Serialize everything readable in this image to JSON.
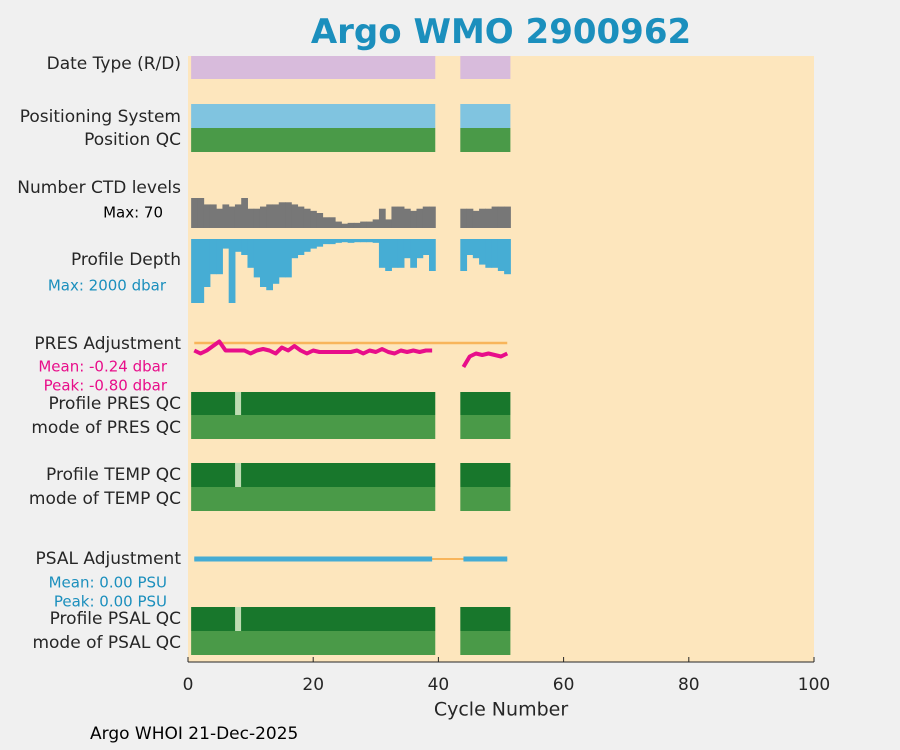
{
  "title": "Argo WMO 2900962",
  "footer": "Argo WHOI 21-Dec-2025",
  "colors": {
    "background": "#f0f0f0",
    "plot_bg": "#fde6bd",
    "title": "#1b8fbd",
    "datemode": "#d8bbdc",
    "positioning": "#80c4e0",
    "qc_light": "#4a9a48",
    "qc_dark": "#18772c",
    "ctd": "#777777",
    "depth": "#46add4",
    "pres_adj": "#e80e8a",
    "psal_adj": "#45acd4",
    "orange_ref": "#f8b55b",
    "gap": "#bfdcb3"
  },
  "chart_data": {
    "type": "timeline",
    "xlabel": "Cycle Number",
    "xlim": [
      0,
      100
    ],
    "xticks": [
      0,
      20,
      40,
      60,
      80,
      100
    ],
    "cycles": [
      1,
      2,
      3,
      4,
      5,
      6,
      7,
      8,
      9,
      10,
      11,
      12,
      13,
      14,
      15,
      16,
      17,
      18,
      19,
      20,
      21,
      22,
      23,
      24,
      25,
      26,
      27,
      28,
      29,
      30,
      31,
      32,
      33,
      34,
      35,
      36,
      37,
      38,
      39,
      44,
      45,
      46,
      47,
      48,
      49,
      50,
      51
    ],
    "tracks": [
      {
        "label": "Date Type (R/D)",
        "kind": "band"
      },
      {
        "label": "Positioning System",
        "kind": "band"
      },
      {
        "label": "Position QC",
        "kind": "band"
      },
      {
        "label": "Number CTD levels",
        "kind": "bars"
      },
      {
        "label": "Profile Depth",
        "kind": "bars"
      },
      {
        "label": "PRES Adjustment",
        "kind": "line"
      },
      {
        "label": "Profile PRES QC",
        "kind": "band"
      },
      {
        "label": "mode of PRES QC",
        "kind": "band"
      },
      {
        "label": "Profile TEMP QC",
        "kind": "band"
      },
      {
        "label": "mode of TEMP QC",
        "kind": "band"
      },
      {
        "label": "PSAL Adjustment",
        "kind": "line"
      },
      {
        "label": "Profile PSAL QC",
        "kind": "band"
      },
      {
        "label": "mode of PSAL QC",
        "kind": "band"
      }
    ],
    "annotations": {
      "ctd_max": "Max: 70",
      "depth_max": "Max: 2000 dbar",
      "pres_mean": "Mean: -0.24 dbar",
      "pres_peak": "Peak: -0.80 dbar",
      "psal_mean": "Mean: 0.00 PSU",
      "psal_peak": "Peak: 0.00 PSU"
    },
    "ctd_levels": [
      70,
      70,
      55,
      55,
      45,
      55,
      50,
      55,
      70,
      45,
      45,
      50,
      55,
      55,
      60,
      60,
      55,
      50,
      45,
      40,
      35,
      25,
      25,
      15,
      10,
      12,
      12,
      15,
      15,
      20,
      45,
      20,
      50,
      50,
      45,
      40,
      45,
      50,
      50,
      45,
      45,
      40,
      45,
      45,
      50,
      50,
      50
    ],
    "profile_depth_fraction": [
      1.0,
      1.0,
      0.75,
      0.55,
      0.55,
      0.15,
      1.0,
      0.2,
      0.25,
      0.45,
      0.6,
      0.75,
      0.8,
      0.7,
      0.6,
      0.6,
      0.3,
      0.25,
      0.2,
      0.15,
      0.12,
      0.08,
      0.08,
      0.06,
      0.05,
      0.06,
      0.05,
      0.05,
      0.05,
      0.06,
      0.45,
      0.5,
      0.45,
      0.45,
      0.3,
      0.45,
      0.3,
      0.25,
      0.5,
      0.5,
      0.25,
      0.3,
      0.4,
      0.45,
      0.45,
      0.5,
      0.55
    ],
    "pres_adjustment_dbar": [
      -0.25,
      -0.35,
      -0.25,
      -0.1,
      0.05,
      -0.25,
      -0.25,
      -0.25,
      -0.25,
      -0.35,
      -0.25,
      -0.2,
      -0.25,
      -0.35,
      -0.15,
      -0.25,
      -0.1,
      -0.25,
      -0.35,
      -0.25,
      -0.3,
      -0.3,
      -0.3,
      -0.3,
      -0.3,
      -0.3,
      -0.25,
      -0.35,
      -0.25,
      -0.3,
      -0.2,
      -0.3,
      -0.35,
      -0.25,
      -0.3,
      -0.25,
      -0.3,
      -0.25,
      -0.25,
      -0.8,
      -0.45,
      -0.35,
      -0.4,
      -0.35,
      -0.4,
      -0.45,
      -0.35
    ],
    "psal_adjustment_psu": [
      0,
      0,
      0,
      0,
      0,
      0,
      0,
      0,
      0,
      0,
      0,
      0,
      0,
      0,
      0,
      0,
      0,
      0,
      0,
      0,
      0,
      0,
      0,
      0,
      0,
      0,
      0,
      0,
      0,
      0,
      0,
      0,
      0,
      0,
      0,
      0,
      0,
      0,
      0,
      0,
      0,
      0,
      0,
      0,
      0,
      0,
      0
    ],
    "qc_gap_cycle": 8
  }
}
